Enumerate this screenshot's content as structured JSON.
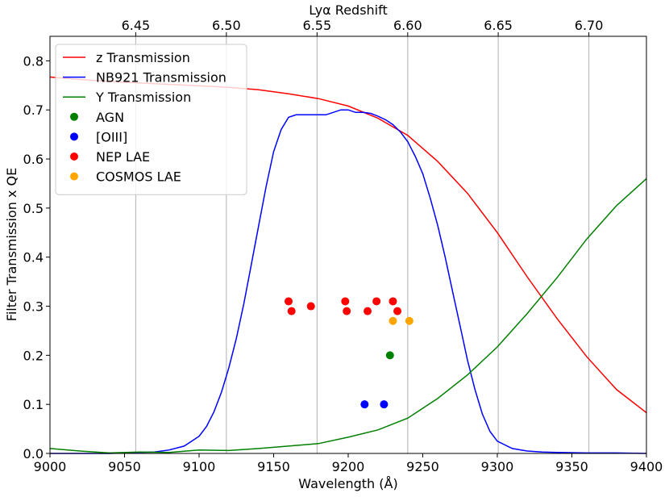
{
  "chart_data": {
    "type": "line",
    "title": "",
    "xlabel": "Wavelength (Å)",
    "ylabel": "Filter Transmission x QE",
    "top_axis_label": "Lyα Redshift",
    "xlim": [
      9000,
      9400
    ],
    "ylim": [
      0,
      0.85
    ],
    "x_ticks": [
      "9000",
      "9050",
      "9100",
      "9150",
      "9200",
      "9250",
      "9300",
      "9350",
      "9400"
    ],
    "x_tick_values": [
      9000,
      9050,
      9100,
      9150,
      9200,
      9250,
      9300,
      9350,
      9400
    ],
    "y_ticks": [
      "0.0",
      "0.1",
      "0.2",
      "0.3",
      "0.4",
      "0.5",
      "0.6",
      "0.7",
      "0.8"
    ],
    "y_tick_values": [
      0,
      0.1,
      0.2,
      0.3,
      0.4,
      0.5,
      0.6,
      0.7,
      0.8
    ],
    "top_ticks": [
      {
        "label": "6.45",
        "wavelength": 9057.5
      },
      {
        "label": "6.50",
        "wavelength": 9118.3
      },
      {
        "label": "6.55",
        "wavelength": 9179.1
      },
      {
        "label": "6.60",
        "wavelength": 9239.9
      },
      {
        "label": "6.65",
        "wavelength": 9300.6
      },
      {
        "label": "6.70",
        "wavelength": 9361.4
      }
    ],
    "legend_position": "upper-left",
    "series": [
      {
        "name": "z Transmission",
        "color": "#ff0000",
        "x": [
          9000,
          9020,
          9040,
          9060,
          9080,
          9100,
          9120,
          9140,
          9160,
          9180,
          9200,
          9220,
          9240,
          9260,
          9280,
          9300,
          9320,
          9340,
          9360,
          9380,
          9400
        ],
        "y": [
          0.767,
          0.762,
          0.758,
          0.755,
          0.752,
          0.749,
          0.746,
          0.741,
          0.733,
          0.723,
          0.708,
          0.683,
          0.648,
          0.595,
          0.53,
          0.45,
          0.36,
          0.275,
          0.197,
          0.13,
          0.083
        ]
      },
      {
        "name": "NB921 Transmission",
        "color": "#0000ff",
        "x": [
          9000,
          9020,
          9040,
          9060,
          9070,
          9080,
          9090,
          9100,
          9105,
          9110,
          9115,
          9120,
          9125,
          9130,
          9135,
          9140,
          9145,
          9150,
          9155,
          9160,
          9165,
          9170,
          9175,
          9180,
          9185,
          9190,
          9195,
          9200,
          9205,
          9210,
          9215,
          9220,
          9225,
          9230,
          9235,
          9240,
          9245,
          9250,
          9255,
          9260,
          9265,
          9270,
          9275,
          9280,
          9285,
          9290,
          9295,
          9300,
          9310,
          9320,
          9330,
          9340,
          9360,
          9380,
          9400
        ],
        "y": [
          0.0,
          0.0,
          0.0,
          0.002,
          0.003,
          0.007,
          0.015,
          0.035,
          0.055,
          0.085,
          0.125,
          0.175,
          0.235,
          0.305,
          0.385,
          0.465,
          0.545,
          0.615,
          0.66,
          0.685,
          0.69,
          0.69,
          0.69,
          0.69,
          0.69,
          0.695,
          0.7,
          0.7,
          0.695,
          0.695,
          0.693,
          0.687,
          0.68,
          0.67,
          0.655,
          0.635,
          0.605,
          0.57,
          0.52,
          0.465,
          0.4,
          0.33,
          0.26,
          0.19,
          0.13,
          0.08,
          0.045,
          0.025,
          0.01,
          0.005,
          0.003,
          0.002,
          0.001,
          0.001,
          0.0
        ]
      },
      {
        "name": "Y Transmission",
        "color": "#008000",
        "x": [
          9000,
          9020,
          9040,
          9060,
          9080,
          9100,
          9120,
          9140,
          9160,
          9180,
          9200,
          9220,
          9240,
          9260,
          9280,
          9300,
          9320,
          9340,
          9360,
          9380,
          9400
        ],
        "y": [
          0.01,
          0.005,
          0.001,
          0.003,
          0.002,
          0.007,
          0.006,
          0.01,
          0.015,
          0.02,
          0.033,
          0.048,
          0.072,
          0.112,
          0.16,
          0.217,
          0.285,
          0.358,
          0.437,
          0.505,
          0.56
        ]
      }
    ],
    "scatter": [
      {
        "name": "AGN",
        "color": "#008000",
        "points": [
          {
            "x": 9228,
            "y": 0.2
          }
        ]
      },
      {
        "name": "[OIII]",
        "color": "#0000ff",
        "points": [
          {
            "x": 9211,
            "y": 0.1
          },
          {
            "x": 9224,
            "y": 0.1
          }
        ]
      },
      {
        "name": "NEP LAE",
        "color": "#ff0000",
        "points": [
          {
            "x": 9160,
            "y": 0.31
          },
          {
            "x": 9162,
            "y": 0.29
          },
          {
            "x": 9175,
            "y": 0.3
          },
          {
            "x": 9198,
            "y": 0.31
          },
          {
            "x": 9199,
            "y": 0.29
          },
          {
            "x": 9213,
            "y": 0.29
          },
          {
            "x": 9219,
            "y": 0.31
          },
          {
            "x": 9230,
            "y": 0.31
          },
          {
            "x": 9233,
            "y": 0.29
          }
        ]
      },
      {
        "name": "COSMOS LAE",
        "color": "#ffa500",
        "points": [
          {
            "x": 9230,
            "y": 0.27
          },
          {
            "x": 9241,
            "y": 0.27
          }
        ]
      }
    ]
  }
}
